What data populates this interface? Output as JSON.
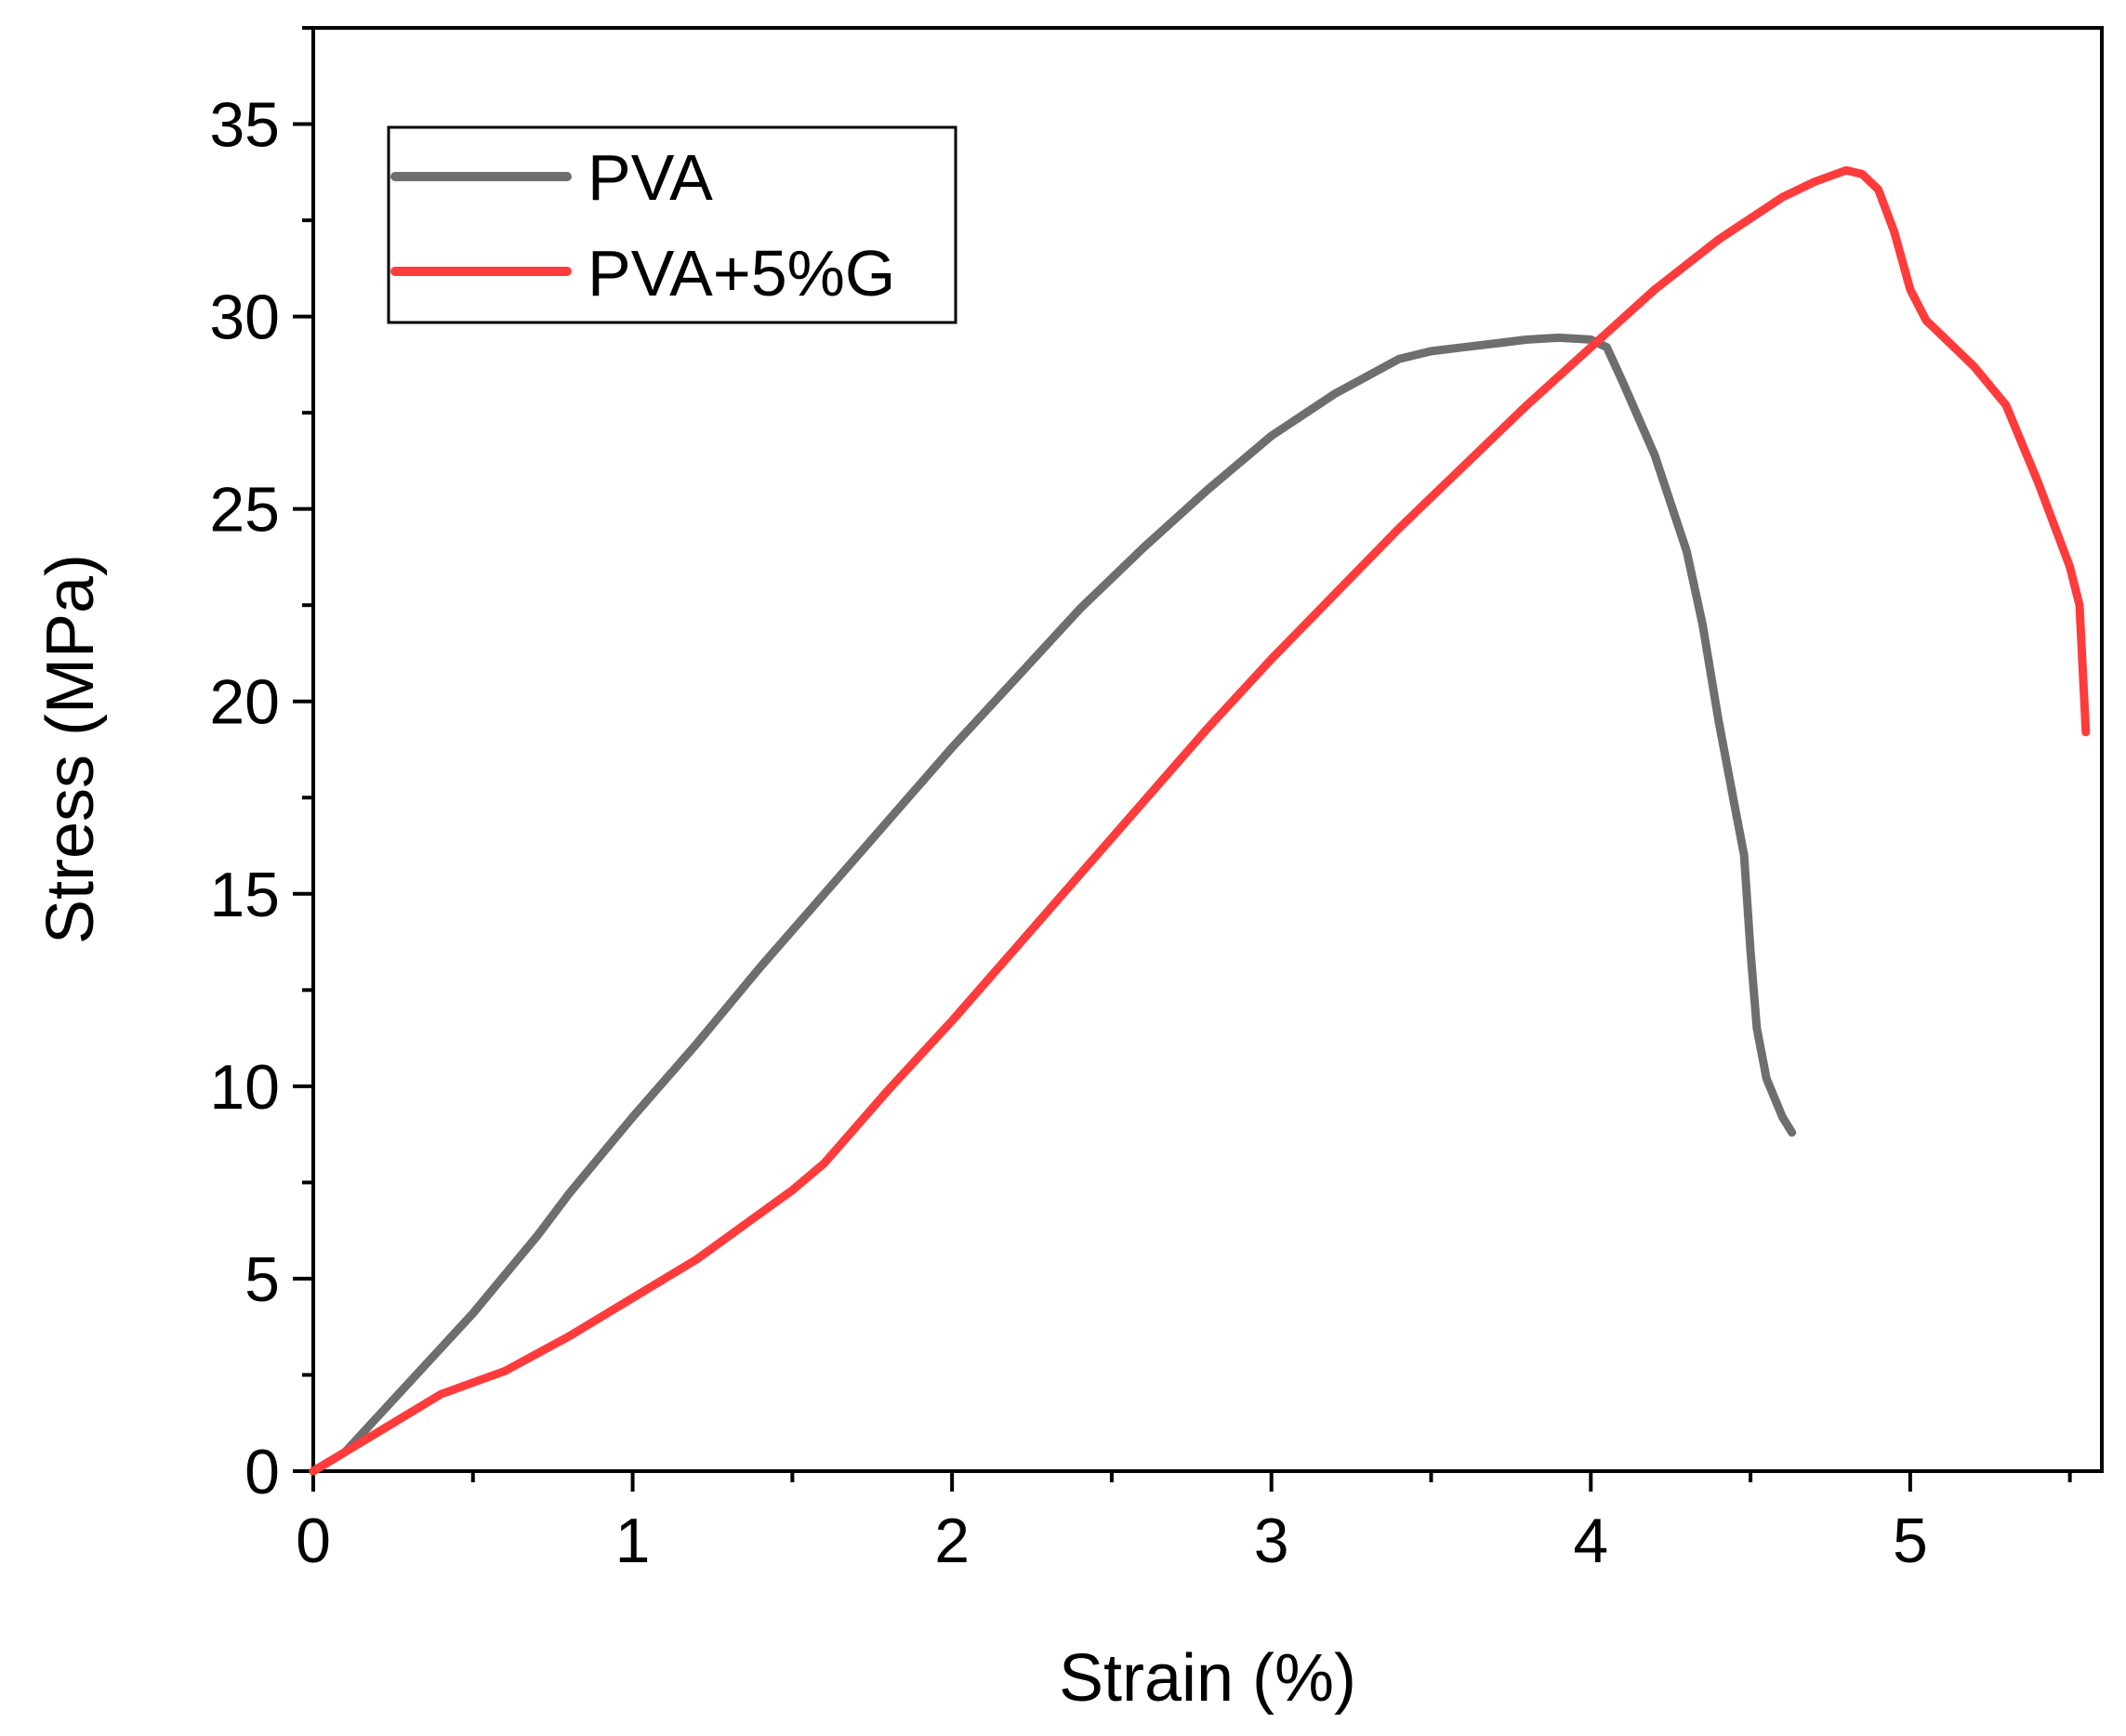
{
  "chart_data": {
    "type": "line",
    "title": "",
    "xlabel": "Strain (%)",
    "ylabel": "Stress (MPa)",
    "xlim": [
      0,
      5.6
    ],
    "ylim": [
      0,
      37.5
    ],
    "xticks": [
      0,
      1,
      2,
      3,
      4,
      5
    ],
    "yticks": [
      0,
      5,
      10,
      15,
      20,
      25,
      30,
      35
    ],
    "x_minor_step": 0.5,
    "y_minor_step": 2.5,
    "grid": false,
    "legend_position": "top-left",
    "series": [
      {
        "name": "PVA",
        "color": "#6e6e6e",
        "x": [
          0.0,
          0.1,
          0.2,
          0.3,
          0.4,
          0.5,
          0.6,
          0.7,
          0.8,
          0.9,
          1.0,
          1.2,
          1.4,
          1.6,
          1.8,
          2.0,
          2.2,
          2.4,
          2.5,
          2.6,
          2.8,
          3.0,
          3.2,
          3.4,
          3.5,
          3.6,
          3.7,
          3.8,
          3.9,
          4.0,
          4.05,
          4.1,
          4.2,
          4.3,
          4.35,
          4.4,
          4.45,
          4.48,
          4.5,
          4.52,
          4.55,
          4.6,
          4.63
        ],
        "y": [
          0.0,
          0.5,
          1.4,
          2.3,
          3.2,
          4.1,
          5.1,
          6.1,
          7.2,
          8.2,
          9.2,
          11.1,
          13.1,
          15.0,
          16.9,
          18.8,
          20.6,
          22.4,
          23.2,
          24.0,
          25.5,
          26.9,
          28.0,
          28.9,
          29.1,
          29.2,
          29.3,
          29.4,
          29.45,
          29.4,
          29.2,
          28.3,
          26.4,
          23.9,
          22.0,
          19.5,
          17.3,
          16.0,
          13.5,
          11.5,
          10.2,
          9.2,
          8.8
        ]
      },
      {
        "name": "PVA+5%G",
        "color": "#ff3b3b",
        "x": [
          0.0,
          0.1,
          0.2,
          0.3,
          0.4,
          0.5,
          0.6,
          0.8,
          1.0,
          1.2,
          1.4,
          1.5,
          1.6,
          1.8,
          2.0,
          2.2,
          2.4,
          2.6,
          2.8,
          3.0,
          3.2,
          3.4,
          3.6,
          3.8,
          4.0,
          4.2,
          4.4,
          4.6,
          4.7,
          4.8,
          4.85,
          4.9,
          4.95,
          5.0,
          5.05,
          5.1,
          5.2,
          5.3,
          5.4,
          5.5,
          5.53,
          5.55
        ],
        "y": [
          0.0,
          0.5,
          1.0,
          1.5,
          2.0,
          2.3,
          2.6,
          3.5,
          4.5,
          5.5,
          6.7,
          7.3,
          8.0,
          9.9,
          11.7,
          13.6,
          15.5,
          17.4,
          19.3,
          21.1,
          22.8,
          24.5,
          26.1,
          27.7,
          29.2,
          30.7,
          32.0,
          33.1,
          33.5,
          33.8,
          33.7,
          33.3,
          32.2,
          30.7,
          29.9,
          29.5,
          28.7,
          27.7,
          25.7,
          23.5,
          22.5,
          19.2
        ]
      }
    ]
  }
}
